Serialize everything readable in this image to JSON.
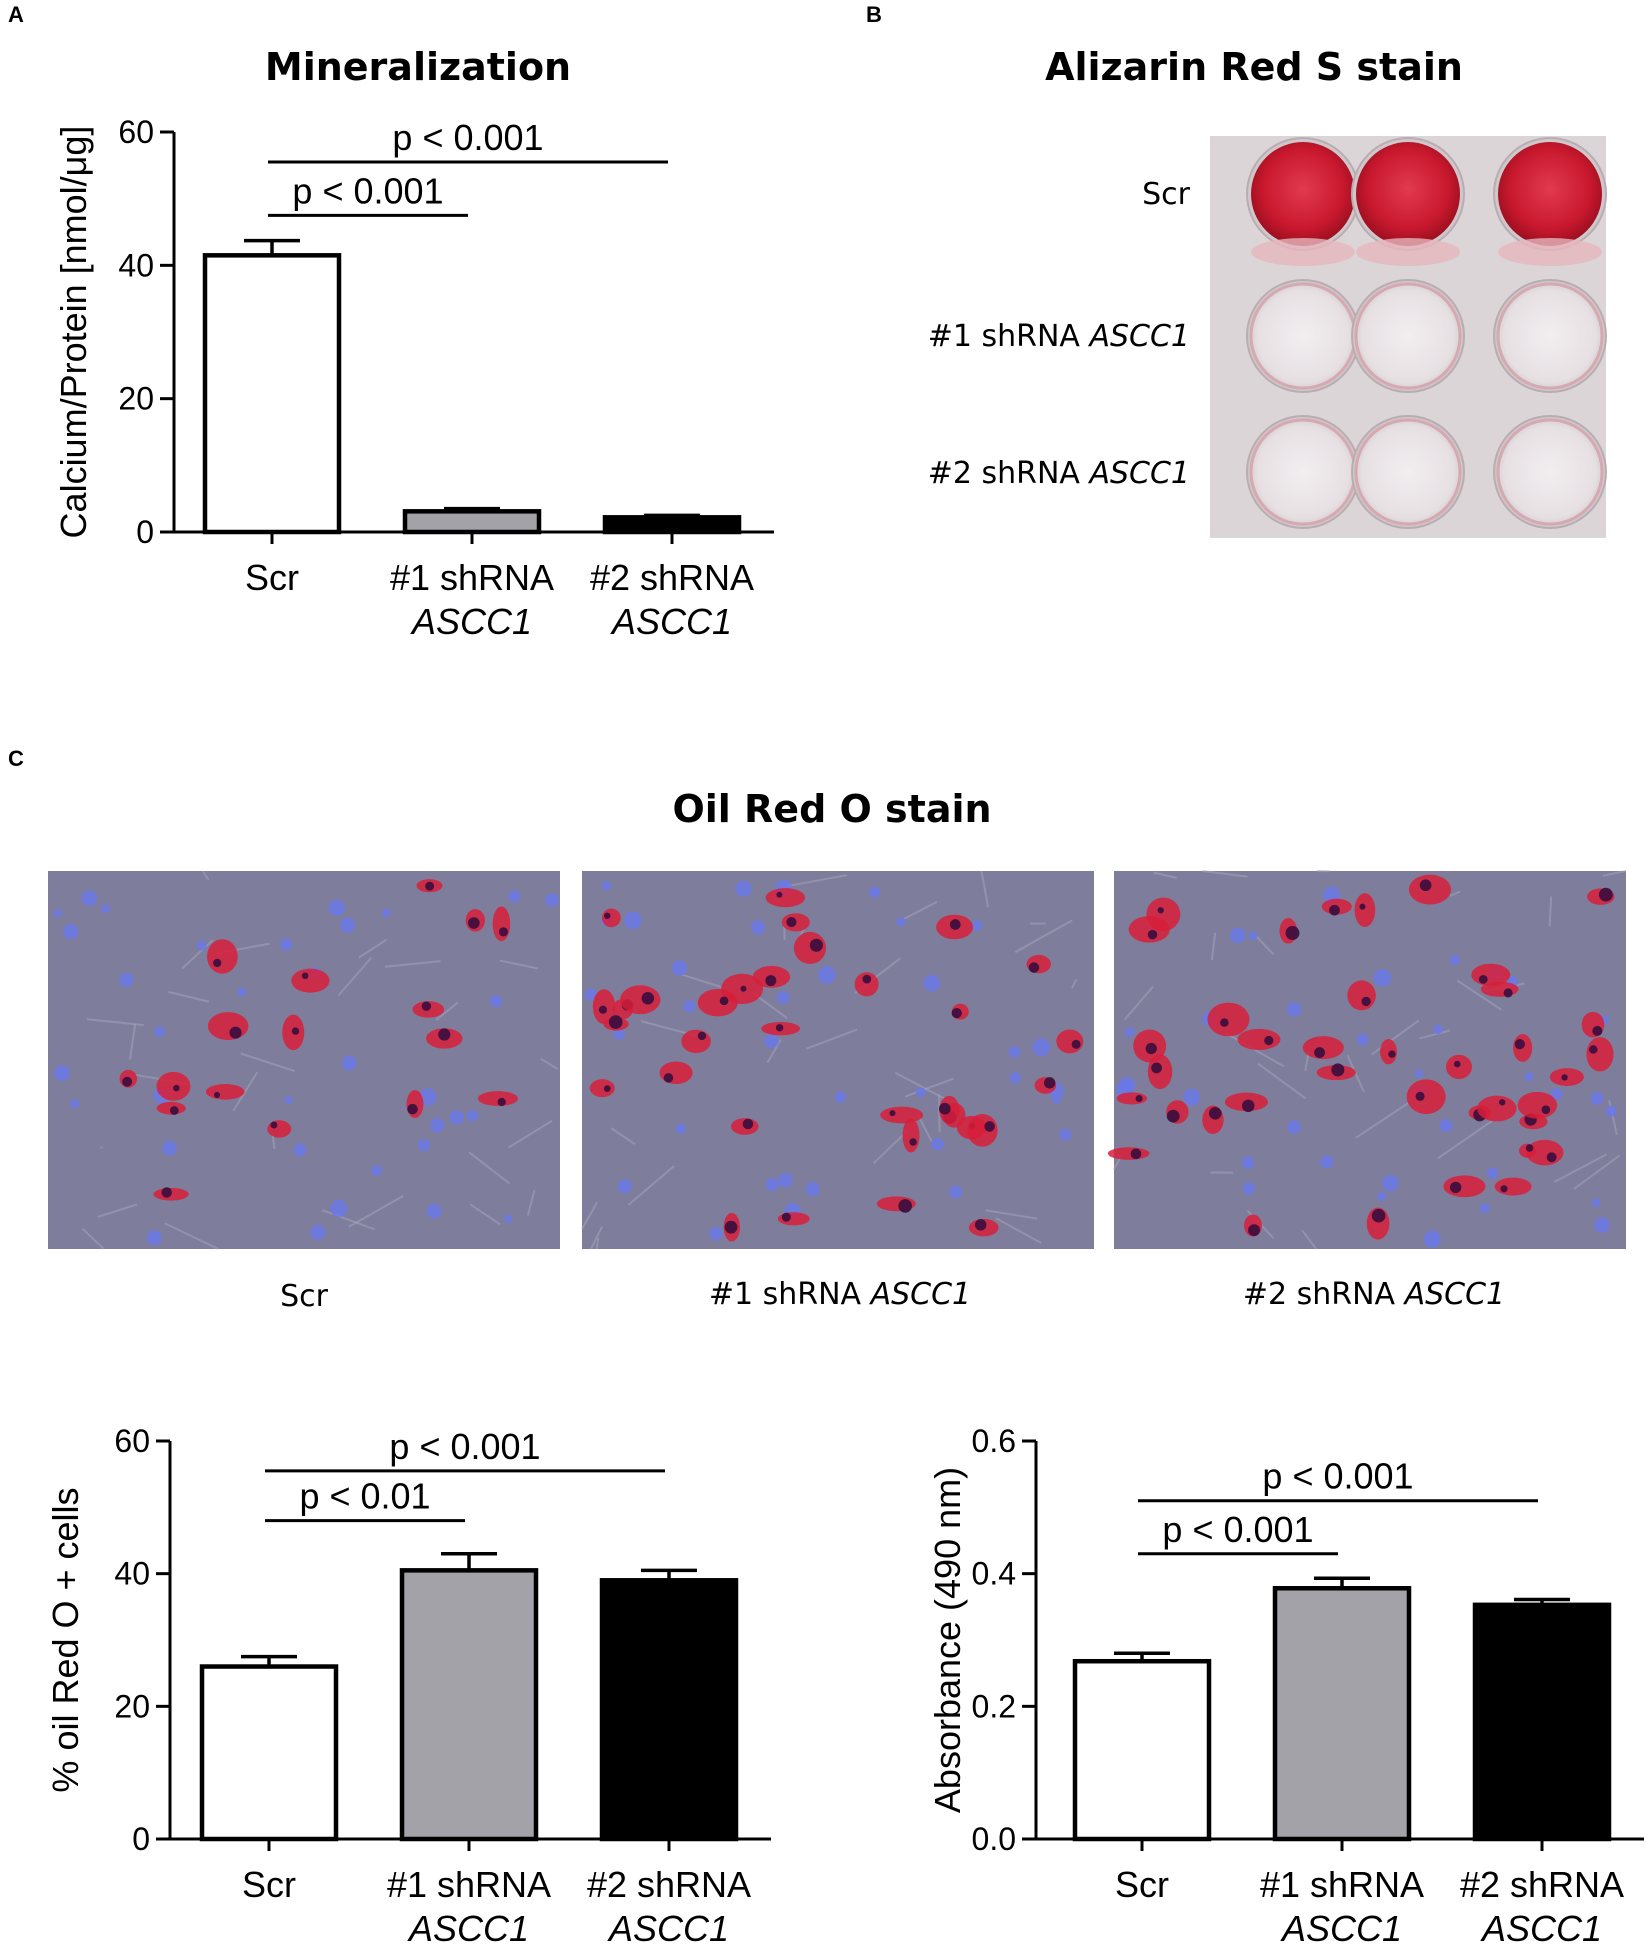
{
  "panels": {
    "a": {
      "letter": "A"
    },
    "b": {
      "letter": "B",
      "title": "Alizarin Red S stain",
      "rows": [
        {
          "prefix": "Scr",
          "gene": ""
        },
        {
          "prefix": "#1 shRNA ",
          "gene": "ASCC1"
        },
        {
          "prefix": "#2 shRNA ",
          "gene": "ASCC1"
        }
      ],
      "well_stain": [
        "strong red",
        "faint",
        "faint"
      ]
    },
    "c": {
      "letter": "C",
      "title": "Oil Red O stain",
      "images": [
        {
          "prefix": "Scr",
          "gene": ""
        },
        {
          "prefix": "#1 shRNA ",
          "gene": "ASCC1"
        },
        {
          "prefix": "#2 shRNA ",
          "gene": "ASCC1"
        }
      ]
    }
  },
  "colors": {
    "scr": "#ffffff",
    "sh1": "#a2a2a8",
    "sh2": "#000000",
    "alizarin": "#d8203a",
    "oil_bg": "#7e7e9c",
    "oil_red": "#d81e3a",
    "oil_blue": "#6a78e6"
  },
  "chart_data": [
    {
      "id": "mineralization",
      "type": "bar",
      "title": "Mineralization",
      "ylabel": "Calcium/Protein [nmol/μg]",
      "ylim": [
        0,
        60
      ],
      "yticks": [
        "0",
        "20",
        "40",
        "60"
      ],
      "categories": [
        {
          "line1": "Scr",
          "line2": ""
        },
        {
          "line1": "#1 shRNA",
          "line2": "ASCC1"
        },
        {
          "line1": "#2 shRNA",
          "line2": "ASCC1"
        }
      ],
      "values": [
        41.5,
        3.1,
        2.2
      ],
      "errors": [
        2.2,
        0.4,
        0.3
      ],
      "comparisons": [
        {
          "from": 0,
          "to": 1,
          "label": "p < 0.001",
          "y": 47.5
        },
        {
          "from": 0,
          "to": 2,
          "label": "p < 0.001",
          "y": 55.5
        }
      ]
    },
    {
      "id": "oil-red-percent",
      "type": "bar",
      "title": "",
      "ylabel": "% oil Red O + cells",
      "ylim": [
        0,
        60
      ],
      "yticks": [
        "0",
        "20",
        "40",
        "60"
      ],
      "categories": [
        {
          "line1": "Scr",
          "line2": ""
        },
        {
          "line1": "#1 shRNA",
          "line2": "ASCC1"
        },
        {
          "line1": "#2 shRNA",
          "line2": "ASCC1"
        }
      ],
      "values": [
        26,
        40.5,
        39
      ],
      "errors": [
        1.5,
        2.5,
        1.5
      ],
      "comparisons": [
        {
          "from": 0,
          "to": 1,
          "label": "p < 0.01",
          "y": 48
        },
        {
          "from": 0,
          "to": 2,
          "label": "p < 0.001",
          "y": 55.5
        }
      ]
    },
    {
      "id": "absorbance",
      "type": "bar",
      "title": "",
      "ylabel": "Absorbance (490 nm)",
      "ylim": [
        0,
        0.6
      ],
      "yticks": [
        "0.0",
        "0.2",
        "0.4",
        "0.6"
      ],
      "categories": [
        {
          "line1": "Scr",
          "line2": ""
        },
        {
          "line1": "#1 shRNA",
          "line2": "ASCC1"
        },
        {
          "line1": "#2 shRNA",
          "line2": "ASCC1"
        }
      ],
      "values": [
        0.268,
        0.378,
        0.353
      ],
      "errors": [
        0.012,
        0.015,
        0.008
      ],
      "comparisons": [
        {
          "from": 0,
          "to": 1,
          "label": "p < 0.001",
          "y": 0.43
        },
        {
          "from": 0,
          "to": 2,
          "label": "p < 0.001",
          "y": 0.51
        }
      ]
    }
  ]
}
